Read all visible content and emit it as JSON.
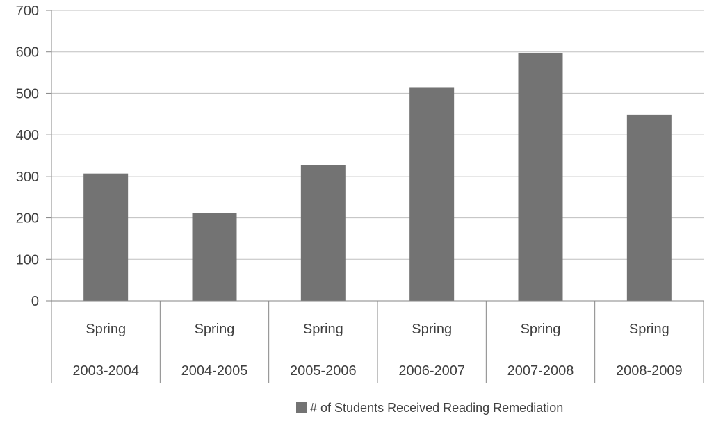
{
  "chart_data": {
    "type": "bar",
    "categories": [
      [
        "Spring",
        "2003-2004"
      ],
      [
        "Spring",
        "2004-2005"
      ],
      [
        "Spring",
        "2005-2006"
      ],
      [
        "Spring",
        "2006-2007"
      ],
      [
        "Spring",
        "2007-2008"
      ],
      [
        "Spring",
        "2008-2009"
      ]
    ],
    "series": [
      {
        "name": "# of Students Received Reading Remediation",
        "values": [
          307,
          211,
          328,
          515,
          597,
          449
        ],
        "color": "#737373"
      }
    ],
    "ylim": [
      0,
      700
    ],
    "yticks": [
      0,
      100,
      200,
      300,
      400,
      500,
      600,
      700
    ],
    "grid": true,
    "legend_position": "bottom"
  }
}
